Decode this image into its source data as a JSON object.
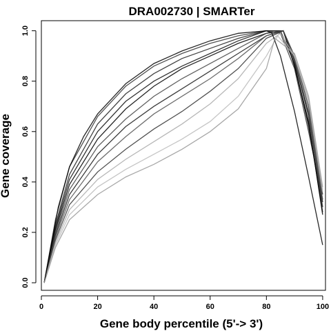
{
  "chart_data": {
    "type": "line",
    "title": "DRA002730 | SMARTer",
    "xlabel": "Gene body percentile (5'-> 3')",
    "ylabel": "Gene coverage",
    "xlim": [
      0,
      101
    ],
    "ylim": [
      -0.03,
      1.04
    ],
    "xticks": [
      0,
      20,
      40,
      60,
      80,
      100
    ],
    "yticks": [
      0.0,
      0.2,
      0.4,
      0.6,
      0.8,
      1.0
    ],
    "xtick_labels": [
      "0",
      "20",
      "40",
      "60",
      "80",
      "100"
    ],
    "ytick_labels": [
      "0.0",
      "0.2",
      "0.4",
      "0.6",
      "0.8",
      "1.0"
    ],
    "grid": false,
    "legend": false,
    "line_color": "#000000",
    "series_note_count": 12,
    "series": [
      {
        "color": "#333333",
        "values": [
          [
            1,
            0.0
          ],
          [
            5,
            0.25
          ],
          [
            10,
            0.46
          ],
          [
            20,
            0.66
          ],
          [
            30,
            0.78
          ],
          [
            40,
            0.86
          ],
          [
            50,
            0.91
          ],
          [
            60,
            0.95
          ],
          [
            70,
            0.98
          ],
          [
            80,
            1.0
          ],
          [
            85,
            0.99
          ],
          [
            90,
            0.85
          ],
          [
            95,
            0.6
          ],
          [
            100,
            0.33
          ]
        ]
      },
      {
        "color": "#222222",
        "values": [
          [
            1,
            0.0
          ],
          [
            5,
            0.23
          ],
          [
            10,
            0.43
          ],
          [
            20,
            0.63
          ],
          [
            30,
            0.75
          ],
          [
            40,
            0.83
          ],
          [
            50,
            0.89
          ],
          [
            60,
            0.93
          ],
          [
            70,
            0.97
          ],
          [
            80,
            1.0
          ],
          [
            85,
            1.0
          ],
          [
            90,
            0.87
          ],
          [
            95,
            0.62
          ],
          [
            100,
            0.3
          ]
        ]
      },
      {
        "color": "#111111",
        "values": [
          [
            1,
            0.0
          ],
          [
            5,
            0.22
          ],
          [
            10,
            0.41
          ],
          [
            20,
            0.6
          ],
          [
            30,
            0.72
          ],
          [
            40,
            0.8
          ],
          [
            50,
            0.86
          ],
          [
            60,
            0.91
          ],
          [
            70,
            0.96
          ],
          [
            80,
            1.0
          ],
          [
            86,
            1.0
          ],
          [
            90,
            0.86
          ],
          [
            95,
            0.63
          ],
          [
            100,
            0.28
          ]
        ]
      },
      {
        "color": "#000000",
        "values": [
          [
            1,
            0.0
          ],
          [
            5,
            0.21
          ],
          [
            10,
            0.39
          ],
          [
            20,
            0.57
          ],
          [
            30,
            0.69
          ],
          [
            40,
            0.78
          ],
          [
            50,
            0.85
          ],
          [
            60,
            0.9
          ],
          [
            70,
            0.95
          ],
          [
            80,
            0.99
          ],
          [
            86,
            1.0
          ],
          [
            90,
            0.86
          ],
          [
            95,
            0.64
          ],
          [
            100,
            0.27
          ]
        ]
      },
      {
        "color": "#444444",
        "values": [
          [
            1,
            0.0
          ],
          [
            5,
            0.2
          ],
          [
            10,
            0.37
          ],
          [
            20,
            0.54
          ],
          [
            30,
            0.65
          ],
          [
            40,
            0.74
          ],
          [
            50,
            0.81
          ],
          [
            60,
            0.87
          ],
          [
            70,
            0.93
          ],
          [
            80,
            0.99
          ],
          [
            86,
            1.0
          ],
          [
            90,
            0.88
          ],
          [
            95,
            0.66
          ],
          [
            100,
            0.3
          ]
        ]
      },
      {
        "color": "#1a1a1a",
        "values": [
          [
            1,
            0.0
          ],
          [
            5,
            0.19
          ],
          [
            10,
            0.35
          ],
          [
            20,
            0.51
          ],
          [
            30,
            0.62
          ],
          [
            40,
            0.7
          ],
          [
            50,
            0.77
          ],
          [
            60,
            0.84
          ],
          [
            70,
            0.91
          ],
          [
            80,
            0.98
          ],
          [
            86,
            1.0
          ],
          [
            90,
            0.88
          ],
          [
            95,
            0.67
          ],
          [
            100,
            0.32
          ]
        ]
      },
      {
        "color": "#555555",
        "values": [
          [
            1,
            0.0
          ],
          [
            5,
            0.18
          ],
          [
            10,
            0.33
          ],
          [
            20,
            0.48
          ],
          [
            30,
            0.58
          ],
          [
            40,
            0.67
          ],
          [
            50,
            0.74
          ],
          [
            60,
            0.81
          ],
          [
            70,
            0.89
          ],
          [
            80,
            0.98
          ],
          [
            86,
            1.0
          ],
          [
            90,
            0.89
          ],
          [
            95,
            0.68
          ],
          [
            100,
            0.33
          ]
        ]
      },
      {
        "color": "#333333",
        "values": [
          [
            1,
            0.0
          ],
          [
            5,
            0.17
          ],
          [
            10,
            0.31
          ],
          [
            20,
            0.44
          ],
          [
            30,
            0.53
          ],
          [
            40,
            0.61
          ],
          [
            50,
            0.68
          ],
          [
            60,
            0.76
          ],
          [
            70,
            0.85
          ],
          [
            80,
            0.97
          ],
          [
            86,
            1.0
          ],
          [
            90,
            0.9
          ],
          [
            95,
            0.7
          ],
          [
            100,
            0.35
          ]
        ]
      },
      {
        "color": "#aaaaaa",
        "values": [
          [
            1,
            0.0
          ],
          [
            5,
            0.16
          ],
          [
            10,
            0.29
          ],
          [
            20,
            0.41
          ],
          [
            30,
            0.49
          ],
          [
            40,
            0.56
          ],
          [
            50,
            0.63
          ],
          [
            60,
            0.71
          ],
          [
            70,
            0.81
          ],
          [
            80,
            0.95
          ],
          [
            85,
            0.99
          ],
          [
            90,
            0.9
          ],
          [
            95,
            0.72
          ],
          [
            100,
            0.36
          ]
        ]
      },
      {
        "color": "#bbbbbb",
        "values": [
          [
            1,
            0.0
          ],
          [
            5,
            0.15
          ],
          [
            10,
            0.27
          ],
          [
            20,
            0.38
          ],
          [
            30,
            0.45
          ],
          [
            40,
            0.51
          ],
          [
            50,
            0.57
          ],
          [
            60,
            0.64
          ],
          [
            70,
            0.74
          ],
          [
            80,
            0.9
          ],
          [
            84,
            0.98
          ],
          [
            90,
            0.9
          ],
          [
            95,
            0.73
          ],
          [
            100,
            0.37
          ]
        ]
      },
      {
        "color": "#000000",
        "values": [
          [
            1,
            0.0
          ],
          [
            3,
            0.12
          ],
          [
            6,
            0.3
          ],
          [
            10,
            0.46
          ],
          [
            15,
            0.58
          ],
          [
            20,
            0.67
          ],
          [
            30,
            0.79
          ],
          [
            40,
            0.87
          ],
          [
            50,
            0.92
          ],
          [
            60,
            0.96
          ],
          [
            70,
            0.99
          ],
          [
            80,
            1.0
          ],
          [
            82,
            0.99
          ],
          [
            85,
            0.9
          ],
          [
            90,
            0.68
          ],
          [
            95,
            0.42
          ],
          [
            100,
            0.15
          ]
        ]
      },
      {
        "color": "#999999",
        "values": [
          [
            1,
            0.0
          ],
          [
            5,
            0.14
          ],
          [
            10,
            0.25
          ],
          [
            20,
            0.35
          ],
          [
            30,
            0.42
          ],
          [
            40,
            0.47
          ],
          [
            50,
            0.53
          ],
          [
            60,
            0.6
          ],
          [
            70,
            0.69
          ],
          [
            80,
            0.85
          ],
          [
            83,
            0.97
          ],
          [
            90,
            0.91
          ],
          [
            95,
            0.74
          ],
          [
            100,
            0.38
          ]
        ]
      }
    ]
  }
}
